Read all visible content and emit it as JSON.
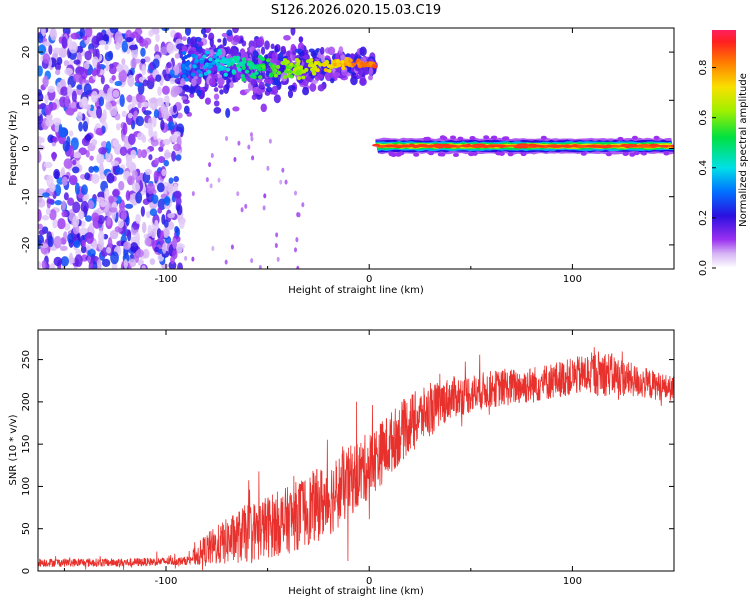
{
  "title": "S126.2026.020.15.03.C19",
  "chart_data": [
    {
      "type": "heatmap",
      "xlabel": "Height of straight line (km)",
      "ylabel": "Frequency (Hz)",
      "xlim": [
        -163,
        150
      ],
      "ylim": [
        -25,
        25
      ],
      "x_ticks": [
        -100,
        0,
        100
      ],
      "y_ticks": [
        -20,
        -10,
        0,
        10,
        20
      ],
      "x_tick_labels": [
        "-100",
        "0",
        "100"
      ],
      "y_tick_labels": [
        "-20",
        "-10",
        "0",
        "10",
        "20"
      ],
      "colorbar": {
        "label": "Normalized spectral amplitude",
        "range": [
          0,
          0.95
        ],
        "ticks": [
          0.0,
          0.2,
          0.4,
          0.6,
          0.8
        ],
        "tick_labels": [
          "0.0",
          "0.2",
          "0.4",
          "0.6",
          "0.8"
        ],
        "colormap": "rainbow (purple to red)"
      },
      "features": [
        {
          "name": "noise-scatter",
          "x_range": [
            -163,
            -92
          ],
          "freq_range": [
            -25,
            25
          ],
          "amplitude": "low 0.0-0.25"
        },
        {
          "name": "upper-trace",
          "x_range": [
            -92,
            3
          ],
          "freq_range": [
            14,
            22
          ],
          "center_freq": 17,
          "amplitude": "0.2-0.9"
        },
        {
          "name": "lower-trace",
          "x_range": [
            3,
            150
          ],
          "center_freq": 0.5,
          "amplitude": "0.9"
        }
      ]
    },
    {
      "type": "line",
      "xlabel": "Height of straight line (km)",
      "ylabel": "SNR (10 * v/v)",
      "xlim": [
        -163,
        150
      ],
      "ylim": [
        0,
        285
      ],
      "x_ticks": [
        -100,
        0,
        100
      ],
      "y_ticks": [
        0,
        50,
        100,
        150,
        200,
        250
      ],
      "x_tick_labels": [
        "-100",
        "0",
        "100"
      ],
      "y_tick_labels": [
        "0",
        "50",
        "100",
        "150",
        "200",
        "250"
      ],
      "series": [
        {
          "color": "#e8312c",
          "trend_x": [
            -163,
            -120,
            -90,
            -80,
            -60,
            -40,
            -20,
            0,
            20,
            40,
            60,
            80,
            100,
            115,
            130,
            150
          ],
          "trend_y": [
            10,
            10,
            12,
            25,
            45,
            60,
            85,
            125,
            175,
            205,
            215,
            220,
            230,
            235,
            225,
            215
          ],
          "noise_amplitude": [
            5,
            5,
            5,
            20,
            35,
            40,
            45,
            40,
            35,
            25,
            22,
            22,
            22,
            28,
            20,
            15
          ]
        }
      ]
    }
  ]
}
